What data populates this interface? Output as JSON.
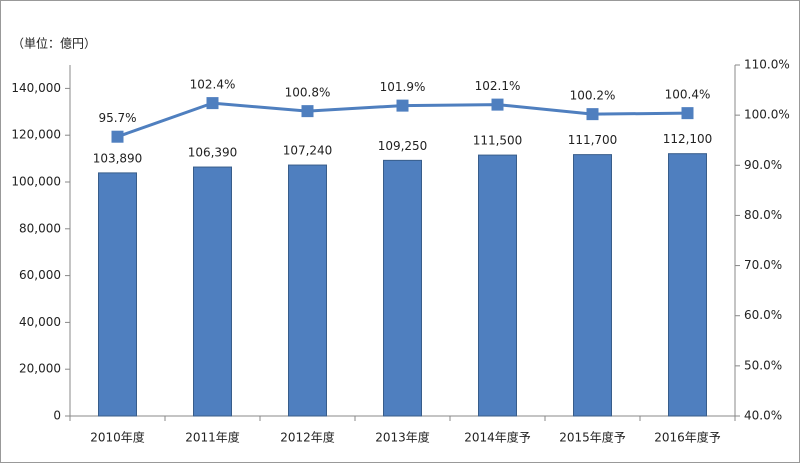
{
  "chart_data": {
    "type": "bar",
    "unit_note": "（単位：億円）",
    "categories": [
      "2010年度",
      "2011年度",
      "2012年度",
      "2013年度",
      "2014年度予",
      "2015年度予",
      "2016年度予"
    ],
    "series": [
      {
        "type": "bar",
        "color": "#4f7fbf",
        "axis": "y",
        "values": [
          103890,
          106390,
          107240,
          109250,
          111500,
          111700,
          112100
        ],
        "value_labels": [
          "103,890",
          "106,390",
          "107,240",
          "109,250",
          "111,500",
          "111,700",
          "112,100"
        ]
      },
      {
        "type": "line",
        "color": "#4f7fbf",
        "axis": "y2",
        "values": [
          95.7,
          102.4,
          100.8,
          101.9,
          102.1,
          100.2,
          100.4
        ],
        "value_labels": [
          "95.7%",
          "102.4%",
          "100.8%",
          "101.9%",
          "102.1%",
          "100.2%",
          "100.4%"
        ]
      }
    ],
    "ylim": [
      0,
      150000
    ],
    "yticks": [
      0,
      {
        "value": 20000,
        "label": "20,000"
      },
      {
        "value": 40000,
        "label": "40,000"
      },
      {
        "value": 60000,
        "label": "60,000"
      },
      {
        "value": 80000,
        "label": "80,000"
      },
      {
        "value": 100000,
        "label": "100,000"
      },
      {
        "value": 120000,
        "label": "120,000"
      },
      {
        "value": 140000,
        "label": "140,000"
      }
    ],
    "y2lim": [
      40,
      110
    ],
    "y2ticks": [
      {
        "value": 40,
        "label": "40.0%"
      },
      {
        "value": 50,
        "label": "50.0%"
      },
      {
        "value": 60,
        "label": "60.0%"
      },
      {
        "value": 70,
        "label": "70.0%"
      },
      {
        "value": 80,
        "label": "80.0%"
      },
      {
        "value": 90,
        "label": "90.0%"
      },
      {
        "value": 100,
        "label": "100.0%"
      },
      {
        "value": 110,
        "label": "110.0%"
      }
    ]
  }
}
